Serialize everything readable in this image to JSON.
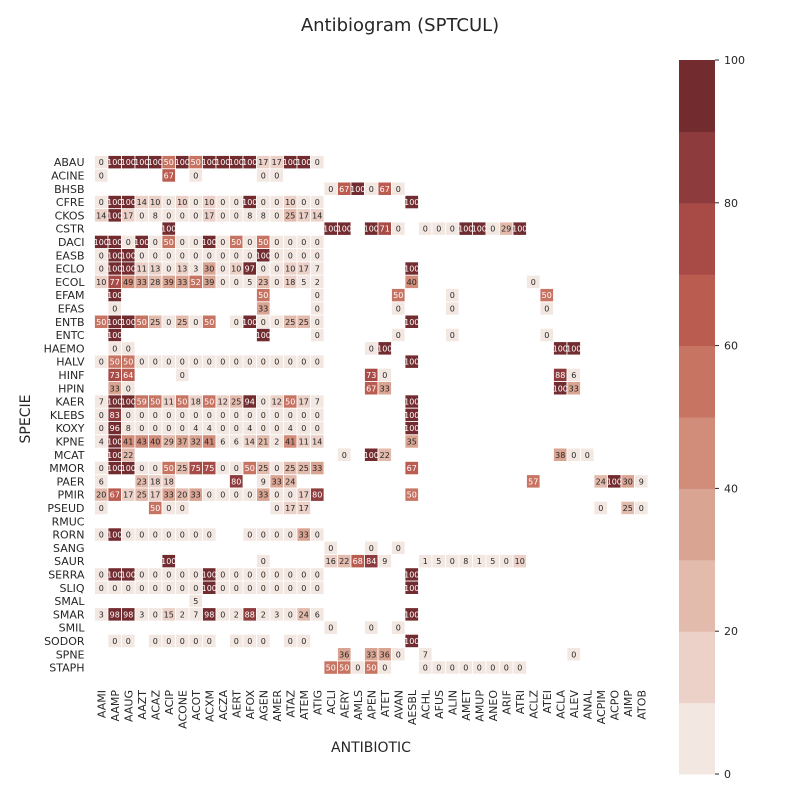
{
  "chart_data": {
    "type": "heatmap",
    "title": "Antibiogram (SPTCUL)",
    "xlabel": "ANTIBIOTIC",
    "ylabel": "SPECIE",
    "grid": false,
    "colorbar": {
      "range": [
        0,
        100
      ],
      "ticks": [
        0,
        20,
        40,
        60,
        80,
        100
      ],
      "levels": 10,
      "colors": [
        "#f3e7e2",
        "#ebd1c8",
        "#e3bbad",
        "#daa493",
        "#d28c7a",
        "#c87463",
        "#bb5c51",
        "#a84b47",
        "#8d3b3c",
        "#722c30"
      ]
    },
    "x": [
      "AAMI",
      "AAMP",
      "AAUG",
      "AAZT",
      "ACAZ",
      "ACIP",
      "ACONE",
      "ACOT",
      "ACXM",
      "ACZA",
      "AERT",
      "AFOX",
      "AGEN",
      "AMER",
      "ATAZ",
      "ATEM",
      "ATIG",
      "ACLI",
      "AERY",
      "AMLS",
      "APEN",
      "ATET",
      "AVAN",
      "AESBL",
      "ACHL",
      "AFUS",
      "ALIN",
      "AMET",
      "AMUP",
      "ANEO",
      "ARIF",
      "ATRI",
      "ACLZ",
      "ATEI",
      "ACLA",
      "ALEV",
      "ANAL",
      "ACPIM",
      "ACPO",
      "AIMP",
      "ATOB"
    ],
    "y": [
      "ABAU",
      "ACINE",
      "BHSB",
      "CFRE",
      "CKOS",
      "CSTR",
      "DACI",
      "EASB",
      "ECLO",
      "ECOL",
      "EFAM",
      "EFAS",
      "ENTB",
      "ENTC",
      "HAEMO",
      "HALV",
      "HINF",
      "HPIN",
      "KAER",
      "KLEBS",
      "KOXY",
      "KPNE",
      "MCAT",
      "MMOR",
      "PAER",
      "PMIR",
      "PSEUD",
      "RMUC",
      "RORN",
      "SANG",
      "SAUR",
      "SERRA",
      "SLIQ",
      "SMAL",
      "SMAR",
      "SMIL",
      "SODOR",
      "SPNE",
      "STAPH"
    ],
    "cells": {
      "ABAU": {
        "AAMI": 0,
        "AAMP": 100,
        "AAUG": 100,
        "AAZT": 100,
        "ACAZ": 100,
        "ACIP": 50,
        "ACONE": 100,
        "ACOT": 50,
        "ACXM": 100,
        "ACZA": 100,
        "AERT": 100,
        "AFOX": 100,
        "AGEN": 17,
        "AMER": 17,
        "ATAZ": 100,
        "ATEM": 100,
        "ATIG": 0
      },
      "ACINE": {
        "AAMI": 0,
        "ACIP": 67,
        "ACOT": 0,
        "AGEN": 0,
        "AMER": 0
      },
      "BHSB": {
        "ACLI": 0,
        "AERY": 67,
        "AMLS": 100,
        "APEN": 0,
        "ATET": 67,
        "AVAN": 0
      },
      "CFRE": {
        "AAMI": 0,
        "AAMP": 100,
        "AAUG": 100,
        "AAZT": 14,
        "ACAZ": 10,
        "ACIP": 0,
        "ACONE": 10,
        "ACOT": 0,
        "ACXM": 10,
        "ACZA": 0,
        "AERT": 0,
        "AFOX": 100,
        "AGEN": 0,
        "AMER": 0,
        "ATAZ": 10,
        "ATEM": 0,
        "ATIG": 0,
        "AESBL": 100
      },
      "CKOS": {
        "AAMI": 14,
        "AAMP": 100,
        "AAUG": 17,
        "AAZT": 0,
        "ACAZ": 8,
        "ACIP": 0,
        "ACONE": 0,
        "ACOT": 0,
        "ACXM": 17,
        "ACZA": 0,
        "AERT": 0,
        "AFOX": 8,
        "AGEN": 8,
        "AMER": 0,
        "ATAZ": 25,
        "ATEM": 17,
        "ATIG": 14
      },
      "CSTR": {
        "ACIP": 100,
        "ACLI": 100,
        "AERY": 100,
        "APEN": 100,
        "ATET": 71,
        "AVAN": 0,
        "ACHL": 0,
        "AFUS": 0,
        "ALIN": 0,
        "AMET": 100,
        "AMUP": 100,
        "ANEO": 0,
        "ARIF": 29,
        "ATRI": 100
      },
      "DACI": {
        "AAMI": 100,
        "AAMP": 100,
        "AAUG": 0,
        "AAZT": 100,
        "ACAZ": 0,
        "ACIP": 50,
        "ACONE": 0,
        "ACOT": 0,
        "ACXM": 100,
        "ACZA": 0,
        "AERT": 50,
        "AFOX": 0,
        "AGEN": 50,
        "AMER": 0,
        "ATAZ": 0,
        "ATEM": 0,
        "ATIG": 0
      },
      "EASB": {
        "AAMI": 0,
        "AAMP": 100,
        "AAUG": 100,
        "AAZT": 0,
        "ACAZ": 0,
        "ACIP": 0,
        "ACONE": 0,
        "ACOT": 0,
        "ACXM": 0,
        "ACZA": 0,
        "AERT": 0,
        "AFOX": 0,
        "AGEN": 100,
        "AMER": 0,
        "ATAZ": 0,
        "ATEM": 0,
        "ATIG": 0
      },
      "ECLO": {
        "AAMI": 0,
        "AAMP": 100,
        "AAUG": 100,
        "AAZT": 11,
        "ACAZ": 13,
        "ACIP": 0,
        "ACONE": 13,
        "ACOT": 3,
        "ACXM": 30,
        "ACZA": 0,
        "AERT": 10,
        "AFOX": 97,
        "AGEN": 0,
        "AMER": 0,
        "ATAZ": 10,
        "ATEM": 17,
        "ATIG": 7,
        "AESBL": 100
      },
      "ECOL": {
        "AAMI": 10,
        "AAMP": 77,
        "AAUG": 49,
        "AAZT": 33,
        "ACAZ": 28,
        "ACIP": 39,
        "ACONE": 33,
        "ACOT": 52,
        "ACXM": 39,
        "ACZA": 0,
        "AERT": 0,
        "AFOX": 5,
        "AGEN": 23,
        "AMER": 0,
        "ATAZ": 18,
        "ATEM": 5,
        "ATIG": 2,
        "AESBL": 40,
        "ACLZ": 0
      },
      "EFAM": {
        "AAMP": 100,
        "AGEN": 50,
        "ATIG": 0,
        "AVAN": 50,
        "ALIN": 0,
        "ATEI": 50
      },
      "EFAS": {
        "AAMP": 0,
        "AGEN": 33,
        "ATIG": 0,
        "AVAN": 0,
        "ALIN": 0,
        "ATEI": 0
      },
      "ENTB": {
        "AAMI": 50,
        "AAMP": 100,
        "AAUG": 100,
        "AAZT": 50,
        "ACAZ": 25,
        "ACIP": 0,
        "ACONE": 25,
        "ACOT": 0,
        "ACXM": 50,
        "AERT": 0,
        "AFOX": 100,
        "AGEN": 0,
        "AMER": 0,
        "ATAZ": 25,
        "ATEM": 25,
        "ATIG": 0,
        "AESBL": 100
      },
      "ENTC": {
        "AAMP": 100,
        "AGEN": 100,
        "ATIG": 0,
        "AVAN": 0,
        "ALIN": 0,
        "ATEI": 0
      },
      "HAEMO": {
        "AAMP": 0,
        "AAUG": 0,
        "APEN": 0,
        "ATET": 100,
        "ACLA": 100,
        "ALEV": 100
      },
      "HALV": {
        "AAMI": 0,
        "AAMP": 50,
        "AAUG": 50,
        "AAZT": 0,
        "ACAZ": 0,
        "ACIP": 0,
        "ACONE": 0,
        "ACOT": 0,
        "ACXM": 0,
        "ACZA": 0,
        "AERT": 0,
        "AFOX": 0,
        "AGEN": 0,
        "AMER": 0,
        "ATAZ": 0,
        "ATEM": 0,
        "ATIG": 0,
        "AESBL": 100
      },
      "HINF": {
        "AAMP": 73,
        "AAUG": 64,
        "ACONE": 0,
        "APEN": 73,
        "ATET": 0,
        "ACLA": 88,
        "ALEV": 6
      },
      "HPIN": {
        "AAMP": 33,
        "AAUG": 0,
        "APEN": 67,
        "ATET": 33,
        "ACLA": 100,
        "ALEV": 33
      },
      "KAER": {
        "AAMI": 7,
        "AAMP": 100,
        "AAUG": 100,
        "AAZT": 59,
        "ACAZ": 50,
        "ACIP": 11,
        "ACONE": 50,
        "ACOT": 18,
        "ACXM": 50,
        "ACZA": 12,
        "AERT": 25,
        "AFOX": 94,
        "AGEN": 0,
        "AMER": 12,
        "ATAZ": 50,
        "ATEM": 17,
        "ATIG": 7,
        "AESBL": 100
      },
      "KLEBS": {
        "AAMI": 0,
        "AAMP": 83,
        "AAUG": 0,
        "AAZT": 0,
        "ACAZ": 0,
        "ACIP": 0,
        "ACONE": 0,
        "ACOT": 0,
        "ACXM": 0,
        "ACZA": 0,
        "AERT": 0,
        "AFOX": 0,
        "AGEN": 0,
        "AMER": 0,
        "ATAZ": 0,
        "ATEM": 0,
        "ATIG": 0,
        "AESBL": 100
      },
      "KOXY": {
        "AAMI": 0,
        "AAMP": 96,
        "AAUG": 8,
        "AAZT": 0,
        "ACAZ": 0,
        "ACIP": 0,
        "ACONE": 0,
        "ACOT": 4,
        "ACXM": 4,
        "ACZA": 0,
        "AERT": 0,
        "AFOX": 4,
        "AGEN": 0,
        "AMER": 0,
        "ATAZ": 4,
        "ATEM": 0,
        "ATIG": 0,
        "AESBL": 100
      },
      "KPNE": {
        "AAMI": 4,
        "AAMP": 100,
        "AAUG": 41,
        "AAZT": 43,
        "ACAZ": 40,
        "ACIP": 29,
        "ACONE": 37,
        "ACOT": 32,
        "ACXM": 41,
        "ACZA": 6,
        "AERT": 6,
        "AFOX": 14,
        "AGEN": 21,
        "AMER": 2,
        "ATAZ": 41,
        "ATEM": 11,
        "ATIG": 14,
        "AESBL": 35
      },
      "MCAT": {
        "AAMP": 100,
        "AAUG": 22,
        "AERY": 0,
        "APEN": 100,
        "ATET": 22,
        "ACLA": 38,
        "ALEV": 0,
        "ANAL": 0
      },
      "MMOR": {
        "AAMI": 0,
        "AAMP": 100,
        "AAUG": 100,
        "AAZT": 0,
        "ACAZ": 0,
        "ACIP": 50,
        "ACONE": 25,
        "ACOT": 75,
        "ACXM": 75,
        "ACZA": 0,
        "AERT": 0,
        "AFOX": 50,
        "AGEN": 25,
        "AMER": 0,
        "ATAZ": 25,
        "ATEM": 25,
        "ATIG": 33,
        "AESBL": 67
      },
      "PAER": {
        "AAMI": 6,
        "AAZT": 23,
        "ACAZ": 18,
        "ACIP": 18,
        "AERT": 80,
        "AGEN": 9,
        "AMER": 33,
        "ATAZ": 24,
        "ACLZ": 57,
        "ACPIM": 24,
        "ACPO": 100,
        "AIMP": 30,
        "ATOB": 9
      },
      "PMIR": {
        "AAMI": 20,
        "AAMP": 67,
        "AAUG": 17,
        "AAZT": 25,
        "ACAZ": 17,
        "ACIP": 33,
        "ACONE": 20,
        "ACOT": 33,
        "ACXM": 0,
        "ACZA": 0,
        "AERT": 0,
        "AFOX": 0,
        "AGEN": 33,
        "AMER": 0,
        "ATAZ": 0,
        "ATEM": 17,
        "ATIG": 80,
        "AESBL": 50
      },
      "PSEUD": {
        "AAMI": 0,
        "ACAZ": 50,
        "ACIP": 0,
        "ACONE": 0,
        "AMER": 0,
        "ATAZ": 17,
        "ATEM": 17,
        "ACPIM": 0,
        "AIMP": 25,
        "ATOB": 0
      },
      "RMUC": {},
      "RORN": {
        "AAMI": 0,
        "AAMP": 100,
        "AAUG": 0,
        "AAZT": 0,
        "ACAZ": 0,
        "ACIP": 0,
        "ACONE": 0,
        "ACOT": 0,
        "ACXM": 0,
        "AFOX": 0,
        "AGEN": 0,
        "AMER": 0,
        "ATAZ": 0,
        "ATEM": 33,
        "ATIG": 0
      },
      "SANG": {
        "ACLI": 0,
        "APEN": 0,
        "AVAN": 0
      },
      "SAUR": {
        "ACIP": 100,
        "AGEN": 0,
        "ACLI": 16,
        "AERY": 22,
        "AMLS": 68,
        "APEN": 84,
        "ATET": 9,
        "ACHL": 1,
        "AFUS": 5,
        "ALIN": 0,
        "AMET": 8,
        "AMUP": 1,
        "ANEO": 5,
        "ARIF": 0,
        "ATRI": 10
      },
      "SERRA": {
        "AAMI": 0,
        "AAMP": 100,
        "AAUG": 100,
        "AAZT": 0,
        "ACAZ": 0,
        "ACIP": 0,
        "ACONE": 0,
        "ACOT": 0,
        "ACXM": 100,
        "ACZA": 0,
        "AERT": 0,
        "AFOX": 0,
        "AGEN": 0,
        "AMER": 0,
        "ATAZ": 0,
        "ATEM": 0,
        "ATIG": 0,
        "AESBL": 100
      },
      "SLIQ": {
        "AAMI": 0,
        "AAMP": 0,
        "AAUG": 0,
        "AAZT": 0,
        "ACAZ": 0,
        "ACIP": 0,
        "ACONE": 0,
        "ACOT": 0,
        "ACXM": 100,
        "ACZA": 0,
        "AERT": 0,
        "AFOX": 0,
        "AGEN": 0,
        "AMER": 0,
        "ATAZ": 0,
        "ATEM": 0,
        "ATIG": 0,
        "AESBL": 100
      },
      "SMAL": {
        "ACOT": 5
      },
      "SMAR": {
        "AAMI": 3,
        "AAMP": 98,
        "AAUG": 98,
        "AAZT": 3,
        "ACAZ": 0,
        "ACIP": 15,
        "ACONE": 2,
        "ACOT": 7,
        "ACXM": 98,
        "ACZA": 0,
        "AERT": 2,
        "AFOX": 88,
        "AGEN": 2,
        "AMER": 3,
        "ATAZ": 0,
        "ATEM": 24,
        "ATIG": 6,
        "AESBL": 100
      },
      "SMIL": {
        "ACLI": 0,
        "APEN": 0,
        "AVAN": 0
      },
      "SODOR": {
        "AAMP": 0,
        "AAUG": 0,
        "ACAZ": 0,
        "ACIP": 0,
        "ACONE": 0,
        "ACOT": 0,
        "ACXM": 0,
        "AERT": 0,
        "AFOX": 0,
        "AGEN": 0,
        "ATAZ": 0,
        "ATEM": 0,
        "AESBL": 100
      },
      "SPNE": {
        "AERY": 36,
        "APEN": 33,
        "ATET": 36,
        "AVAN": 0,
        "ACHL": 7,
        "ALEV": 0
      },
      "STAPH": {
        "ACLI": 50,
        "AERY": 50,
        "AMLS": 0,
        "APEN": 50,
        "ATET": 0,
        "ACHL": 0,
        "AFUS": 0,
        "ALIN": 0,
        "AMET": 0,
        "AMUP": 0,
        "ANEO": 0,
        "ARIF": 0,
        "ATRI": 0
      }
    }
  }
}
